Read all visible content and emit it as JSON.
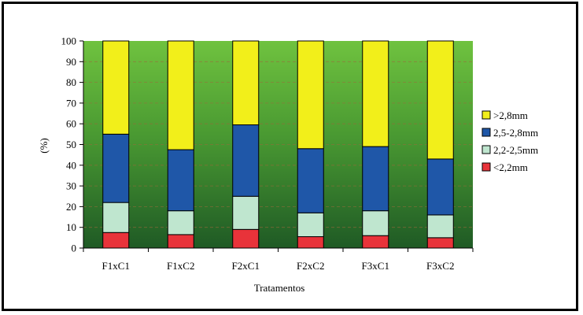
{
  "chart_data": {
    "type": "bar",
    "stacked": true,
    "percent": true,
    "categories": [
      "F1xC1",
      "F1xC2",
      "F2xC1",
      "F2xC2",
      "F3xC1",
      "F3xC2"
    ],
    "series": [
      {
        "name": "<2,2mm",
        "color": "#e8333a",
        "values": [
          7.5,
          6.5,
          9,
          5.5,
          6,
          5
        ]
      },
      {
        "name": "2,2-2,5mm",
        "color": "#bfe6cf",
        "values": [
          14.5,
          11.5,
          16,
          11.5,
          12,
          11
        ]
      },
      {
        "name": "2,5-2,8mm",
        "color": "#1f57a8",
        "values": [
          33,
          29.5,
          34.5,
          31,
          31,
          27
        ]
      },
      {
        "name": ">2,8mm",
        "color": "#f2ef1a",
        "values": [
          45,
          52.5,
          40.5,
          52,
          51,
          57
        ]
      }
    ],
    "legend_order": [
      ">2,8mm",
      "2,5-2,8mm",
      "2,2-2,5mm",
      "<2,2mm"
    ],
    "xlabel": "Tratamentos",
    "ylabel": "(%)",
    "ylim": [
      0,
      100
    ],
    "yticks": [
      0,
      10,
      20,
      30,
      40,
      50,
      60,
      70,
      80,
      90,
      100
    ],
    "plot_background": "green gradient",
    "legend_position": "right"
  }
}
